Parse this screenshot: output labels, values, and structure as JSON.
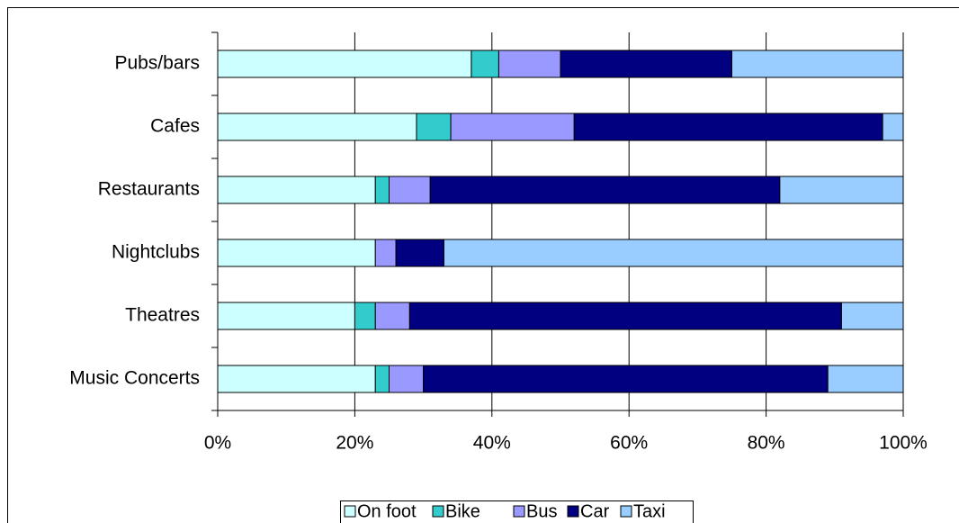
{
  "chart_data": {
    "type": "stacked_bar_horizontal",
    "categories": [
      "Pubs/bars",
      "Cafes",
      "Restaurants",
      "Nightclubs",
      "Theatres",
      "Music Concerts"
    ],
    "series": [
      {
        "name": "On foot",
        "color": "#ccffff",
        "values": [
          37,
          29,
          23,
          23,
          20,
          23
        ]
      },
      {
        "name": "Bike",
        "color": "#33cccc",
        "values": [
          4,
          5,
          2,
          0,
          3,
          2
        ]
      },
      {
        "name": "Bus",
        "color": "#9999ff",
        "values": [
          9,
          18,
          6,
          3,
          5,
          5
        ]
      },
      {
        "name": "Car",
        "color": "#000080",
        "values": [
          25,
          45,
          51,
          7,
          63,
          59
        ]
      },
      {
        "name": "Taxi",
        "color": "#99ccff",
        "values": [
          25,
          3,
          18,
          67,
          9,
          11
        ]
      }
    ],
    "xlim": [
      0,
      100
    ],
    "xticks": [
      {
        "value": 0,
        "label": "0%"
      },
      {
        "value": 20,
        "label": "20%"
      },
      {
        "value": 40,
        "label": "40%"
      },
      {
        "value": 60,
        "label": "60%"
      },
      {
        "value": 80,
        "label": "80%"
      },
      {
        "value": 100,
        "label": "100%"
      }
    ],
    "grid": true,
    "legend": "bottom"
  }
}
